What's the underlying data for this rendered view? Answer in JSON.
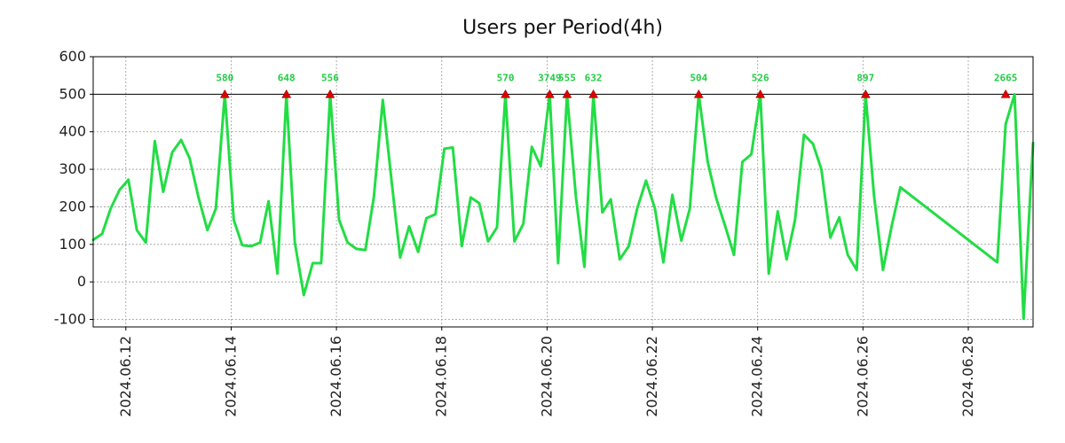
{
  "chart_data": {
    "type": "line",
    "title": "Users per Period(4h)",
    "xlabel": "",
    "ylabel": "",
    "ylim": [
      -120,
      600
    ],
    "y_ticks": [
      600,
      500,
      400,
      300,
      200,
      100,
      0,
      -100
    ],
    "y_tick_labels": [
      "600",
      "500",
      "400",
      "300",
      "200",
      "100",
      "0",
      "-100"
    ],
    "x_range_days": [
      0,
      17.85
    ],
    "x_ticks_day": [
      0.62,
      2.62,
      4.62,
      6.62,
      8.62,
      10.62,
      12.62,
      14.62,
      16.62
    ],
    "x_tick_labels": [
      "2024.06.12",
      "2024.06.14",
      "2024.06.16",
      "2024.06.18",
      "2024.06.20",
      "2024.06.22",
      "2024.06.24",
      "2024.06.26",
      "2024.06.28"
    ],
    "threshold": 500,
    "colors": {
      "line": "#22dd44",
      "marker": "#dd0000",
      "threshold": "#000000",
      "peak_label": "#22cc44"
    },
    "series": [
      {
        "name": "Users",
        "x": [
          0,
          0.17,
          0.33,
          0.5,
          0.67,
          0.83,
          1.0,
          1.17,
          1.33,
          1.5,
          1.67,
          1.83,
          2.0,
          2.17,
          2.33,
          2.5,
          2.67,
          2.83,
          3.0,
          3.17,
          3.33,
          3.5,
          3.67,
          3.83,
          4.0,
          4.17,
          4.33,
          4.5,
          4.67,
          4.83,
          5.0,
          5.17,
          5.33,
          5.5,
          5.67,
          5.83,
          6.0,
          6.17,
          6.33,
          6.5,
          6.67,
          6.83,
          7.0,
          7.17,
          7.33,
          7.5,
          7.67,
          7.83,
          8.0,
          8.17,
          8.33,
          8.5,
          8.67,
          8.83,
          9.0,
          9.17,
          9.33,
          9.5,
          9.67,
          9.83,
          10.0,
          10.17,
          10.33,
          10.5,
          10.67,
          10.83,
          11.0,
          11.17,
          11.33,
          11.5,
          11.67,
          11.83,
          12.0,
          12.17,
          12.33,
          12.5,
          12.67,
          12.83,
          13.0,
          13.17,
          13.33,
          13.5,
          13.67,
          13.83,
          14.0,
          14.17,
          14.33,
          14.5,
          14.67,
          14.83,
          15.0,
          15.17,
          15.33,
          17.17,
          17.33,
          17.5,
          17.67,
          17.85
        ],
        "values": [
          112,
          128,
          195,
          245,
          272,
          138,
          105,
          375,
          240,
          345,
          378,
          330,
          225,
          138,
          195,
          500,
          165,
          98,
          95,
          105,
          215,
          22,
          500,
          105,
          -35,
          50,
          50,
          500,
          165,
          105,
          88,
          85,
          225,
          485,
          265,
          65,
          148,
          80,
          170,
          180,
          355,
          358,
          95,
          225,
          210,
          108,
          145,
          500,
          108,
          155,
          360,
          308,
          500,
          50,
          500,
          225,
          40,
          500,
          185,
          220,
          60,
          95,
          195,
          270,
          195,
          52,
          232,
          110,
          195,
          500,
          320,
          225,
          150,
          72,
          320,
          340,
          500,
          22,
          188,
          60,
          165,
          392,
          368,
          300,
          118,
          172,
          72,
          32,
          500,
          230,
          32,
          152,
          252,
          52,
          420,
          500,
          -98,
          370
        ]
      }
    ],
    "peaks": [
      {
        "x": 2.5,
        "y": 500,
        "label": "580"
      },
      {
        "x": 3.67,
        "y": 500,
        "label": "648"
      },
      {
        "x": 4.5,
        "y": 500,
        "label": "556"
      },
      {
        "x": 7.83,
        "y": 500,
        "label": "570"
      },
      {
        "x": 8.67,
        "y": 500,
        "label": "3749"
      },
      {
        "x": 9.0,
        "y": 500,
        "label": "555"
      },
      {
        "x": 9.5,
        "y": 500,
        "label": "632"
      },
      {
        "x": 11.5,
        "y": 500,
        "label": "504"
      },
      {
        "x": 12.67,
        "y": 500,
        "label": "526"
      },
      {
        "x": 14.67,
        "y": 500,
        "label": "897"
      },
      {
        "x": 17.33,
        "y": 500,
        "label": "2665"
      }
    ]
  }
}
